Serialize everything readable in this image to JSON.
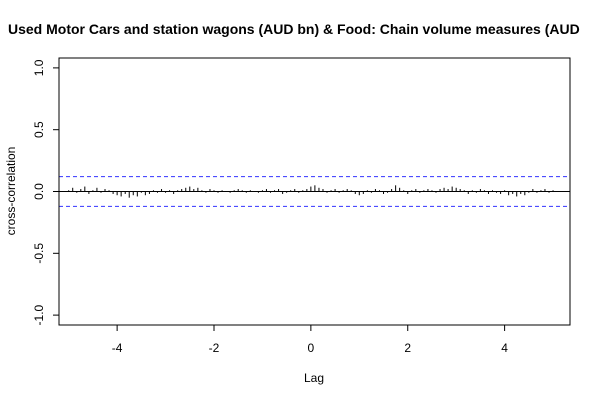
{
  "chart_data": {
    "type": "bar",
    "title": "Used Motor Cars and station wagons (AUD bn) & Food: Chain volume measures (AUD",
    "xlabel": "Lag",
    "ylabel": "cross-correlation",
    "xlim": [
      -5.2,
      5.35
    ],
    "ylim": [
      -1.08,
      1.08
    ],
    "x_ticks": [
      -4,
      -2,
      0,
      2,
      4
    ],
    "x_tick_labels": [
      "-4",
      "-2",
      "0",
      "2",
      "4"
    ],
    "y_ticks": [
      -1.0,
      -0.5,
      0.0,
      0.5,
      1.0
    ],
    "y_tick_labels": [
      "-1.0",
      "-0.5",
      "0.0",
      "0.5",
      "1.0"
    ],
    "confidence_limits": [
      0.12,
      -0.12
    ],
    "colors": {
      "bars": "#000000",
      "confidence": "#3333ff",
      "zero_line": "#000000",
      "frame": "#000000"
    },
    "lags": [
      -5.0,
      -4.917,
      -4.833,
      -4.75,
      -4.667,
      -4.583,
      -4.5,
      -4.417,
      -4.333,
      -4.25,
      -4.167,
      -4.083,
      -4.0,
      -3.917,
      -3.833,
      -3.75,
      -3.667,
      -3.583,
      -3.5,
      -3.417,
      -3.333,
      -3.25,
      -3.167,
      -3.083,
      -3.0,
      -2.917,
      -2.833,
      -2.75,
      -2.667,
      -2.583,
      -2.5,
      -2.417,
      -2.333,
      -2.25,
      -2.167,
      -2.083,
      -2.0,
      -1.917,
      -1.833,
      -1.75,
      -1.667,
      -1.583,
      -1.5,
      -1.417,
      -1.333,
      -1.25,
      -1.167,
      -1.083,
      -1.0,
      -0.917,
      -0.833,
      -0.75,
      -0.667,
      -0.583,
      -0.5,
      -0.417,
      -0.333,
      -0.25,
      -0.167,
      -0.083,
      0.0,
      0.083,
      0.167,
      0.25,
      0.333,
      0.417,
      0.5,
      0.583,
      0.667,
      0.75,
      0.833,
      0.917,
      1.0,
      1.083,
      1.167,
      1.25,
      1.333,
      1.417,
      1.5,
      1.583,
      1.667,
      1.75,
      1.833,
      1.917,
      2.0,
      2.083,
      2.167,
      2.25,
      2.333,
      2.417,
      2.5,
      2.583,
      2.667,
      2.75,
      2.833,
      2.917,
      3.0,
      3.083,
      3.167,
      3.25,
      3.333,
      3.417,
      3.5,
      3.583,
      3.667,
      3.75,
      3.833,
      3.917,
      4.0,
      4.083,
      4.167,
      4.25,
      4.333,
      4.417,
      4.5,
      4.583,
      4.667,
      4.75,
      4.833,
      4.917,
      5.0
    ],
    "values": [
      0.01,
      0.03,
      -0.01,
      0.02,
      0.04,
      -0.02,
      0.01,
      0.03,
      -0.01,
      0.02,
      0.01,
      -0.02,
      -0.03,
      -0.04,
      -0.02,
      -0.05,
      -0.03,
      -0.04,
      -0.01,
      -0.03,
      -0.02,
      0.01,
      -0.01,
      0.02,
      -0.01,
      0.01,
      -0.02,
      0.01,
      0.02,
      0.03,
      0.04,
      0.02,
      0.03,
      0.01,
      -0.01,
      0.02,
      0.01,
      -0.01,
      0.01,
      0.0,
      -0.01,
      0.01,
      0.02,
      0.01,
      -0.01,
      0.01,
      0.0,
      -0.01,
      0.01,
      0.02,
      -0.01,
      0.01,
      0.02,
      -0.02,
      -0.01,
      0.01,
      0.02,
      -0.01,
      0.01,
      0.02,
      0.04,
      0.05,
      0.03,
      0.02,
      -0.01,
      0.01,
      0.02,
      -0.01,
      0.01,
      0.02,
      0.01,
      -0.02,
      -0.03,
      -0.02,
      0.01,
      -0.01,
      0.02,
      0.01,
      -0.02,
      -0.01,
      0.02,
      0.05,
      0.03,
      0.01,
      -0.02,
      0.01,
      0.02,
      -0.01,
      0.01,
      0.02,
      0.01,
      -0.01,
      0.02,
      0.03,
      0.02,
      0.04,
      0.03,
      0.02,
      0.01,
      -0.02,
      0.01,
      -0.01,
      0.02,
      0.01,
      -0.02,
      0.01,
      -0.01,
      -0.02,
      0.01,
      -0.03,
      -0.02,
      -0.04,
      -0.02,
      -0.03,
      -0.01,
      0.02,
      -0.01,
      0.01,
      0.02,
      -0.01,
      0.01
    ]
  }
}
